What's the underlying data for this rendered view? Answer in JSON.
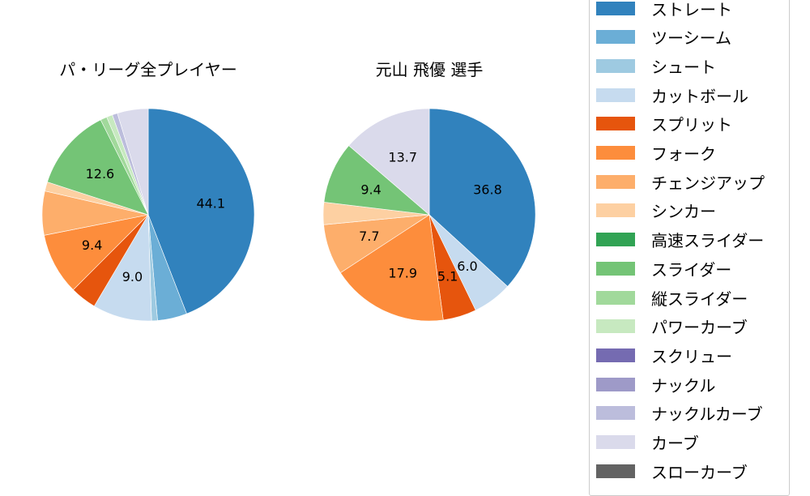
{
  "chart_data": [
    {
      "type": "pie",
      "title": "パ・リーグ全プレイヤー",
      "center": [
        183,
        265
      ],
      "radius": 131,
      "startangle": 90,
      "direction": "clockwise",
      "slices": [
        {
          "label": "ストレート",
          "value": 44.1,
          "shown": "44.1"
        },
        {
          "label": "ツーシーム",
          "value": 4.5,
          "shown": ""
        },
        {
          "label": "シュート",
          "value": 0.9,
          "shown": ""
        },
        {
          "label": "カットボール",
          "value": 9.0,
          "shown": "9.0"
        },
        {
          "label": "スプリット",
          "value": 4.0,
          "shown": ""
        },
        {
          "label": "フォーク",
          "value": 9.4,
          "shown": "9.4"
        },
        {
          "label": "チェンジアップ",
          "value": 6.7,
          "shown": ""
        },
        {
          "label": "シンカー",
          "value": 1.4,
          "shown": ""
        },
        {
          "label": "スライダー",
          "value": 12.6,
          "shown": "12.6"
        },
        {
          "label": "縦スライダー",
          "value": 1.0,
          "shown": ""
        },
        {
          "label": "パワーカーブ",
          "value": 0.9,
          "shown": ""
        },
        {
          "label": "ナックルカーブ",
          "value": 0.8,
          "shown": ""
        },
        {
          "label": "カーブ",
          "value": 4.7,
          "shown": ""
        }
      ]
    },
    {
      "type": "pie",
      "title": "元山 飛優  選手",
      "center": [
        530,
        265
      ],
      "radius": 131,
      "startangle": 90,
      "direction": "clockwise",
      "slices": [
        {
          "label": "ストレート",
          "value": 36.8,
          "shown": "36.8"
        },
        {
          "label": "カットボール",
          "value": 6.0,
          "shown": "6.0"
        },
        {
          "label": "スプリット",
          "value": 5.1,
          "shown": "5.1"
        },
        {
          "label": "フォーク",
          "value": 17.9,
          "shown": "17.9"
        },
        {
          "label": "チェンジアップ",
          "value": 7.7,
          "shown": "7.7"
        },
        {
          "label": "シンカー",
          "value": 3.4,
          "shown": ""
        },
        {
          "label": "スライダー",
          "value": 9.4,
          "shown": "9.4"
        },
        {
          "label": "カーブ",
          "value": 13.7,
          "shown": "13.7"
        }
      ]
    }
  ],
  "legend": {
    "items": [
      {
        "label": "ストレート",
        "color": "#3182bd"
      },
      {
        "label": "ツーシーム",
        "color": "#6baed6"
      },
      {
        "label": "シュート",
        "color": "#9ecae1"
      },
      {
        "label": "カットボール",
        "color": "#c6dbef"
      },
      {
        "label": "スプリット",
        "color": "#e6550d"
      },
      {
        "label": "フォーク",
        "color": "#fd8d3c"
      },
      {
        "label": "チェンジアップ",
        "color": "#fdae6b"
      },
      {
        "label": "シンカー",
        "color": "#fdd0a2"
      },
      {
        "label": "高速スライダー",
        "color": "#31a354"
      },
      {
        "label": "スライダー",
        "color": "#74c476"
      },
      {
        "label": "縦スライダー",
        "color": "#a1d99b"
      },
      {
        "label": "パワーカーブ",
        "color": "#c7e9c0"
      },
      {
        "label": "スクリュー",
        "color": "#756bb1"
      },
      {
        "label": "ナックル",
        "color": "#9e9ac8"
      },
      {
        "label": "ナックルカーブ",
        "color": "#bcbddc"
      },
      {
        "label": "カーブ",
        "color": "#dadaeb"
      },
      {
        "label": "スローカーブ",
        "color": "#636363"
      }
    ]
  }
}
